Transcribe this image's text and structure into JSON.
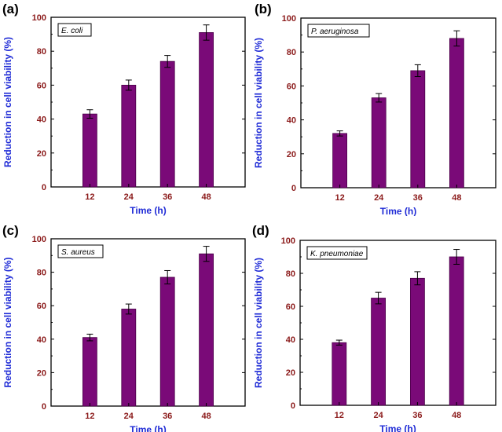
{
  "colors": {
    "bar": "#7a0a78",
    "bar_edge": "#4a0048",
    "axis_label": "#1f2bd6",
    "tick_label": "#8b1a1a",
    "frame": "#000000"
  },
  "chart_data": [
    {
      "type": "bar",
      "panel_label": "(a)",
      "legend": "E. coli",
      "categories": [
        "12",
        "24",
        "36",
        "48"
      ],
      "values": [
        43,
        60,
        74,
        91
      ],
      "errors": [
        2.5,
        3,
        3.5,
        4.5
      ],
      "xlabel": "Time (h)",
      "ylabel": "Reduction in cell viability (%)",
      "ylim": [
        0,
        100
      ],
      "yticks": [
        "0",
        "20",
        "40",
        "60",
        "80",
        "100"
      ]
    },
    {
      "type": "bar",
      "panel_label": "(b)",
      "legend": "P. aeruginosa",
      "categories": [
        "12",
        "24",
        "36",
        "48"
      ],
      "values": [
        32,
        53,
        69,
        88
      ],
      "errors": [
        1.5,
        2.5,
        3.5,
        4.5
      ],
      "xlabel": "Time (h)",
      "ylabel": "Reduction in cell viability (%)",
      "ylim": [
        0,
        100
      ],
      "yticks": [
        "0",
        "20",
        "40",
        "60",
        "80",
        "100"
      ]
    },
    {
      "type": "bar",
      "panel_label": "(c)",
      "legend": "S. aureus",
      "categories": [
        "12",
        "24",
        "36",
        "48"
      ],
      "values": [
        41,
        58,
        77,
        91
      ],
      "errors": [
        2,
        3,
        4,
        4.5
      ],
      "xlabel": "Time (h)",
      "ylabel": "Reduction in cell viability (%)",
      "ylim": [
        0,
        100
      ],
      "yticks": [
        "0",
        "20",
        "40",
        "60",
        "80",
        "100"
      ]
    },
    {
      "type": "bar",
      "panel_label": "(d)",
      "legend": "K. pneumoniae",
      "categories": [
        "12",
        "24",
        "36",
        "48"
      ],
      "values": [
        38,
        65,
        77,
        90
      ],
      "errors": [
        1.5,
        3.5,
        4,
        4.5
      ],
      "xlabel": "Time (h)",
      "ylabel": "Reduction in cell viability (%)",
      "ylim": [
        0,
        100
      ],
      "yticks": [
        "0",
        "20",
        "40",
        "60",
        "80",
        "100"
      ]
    }
  ]
}
